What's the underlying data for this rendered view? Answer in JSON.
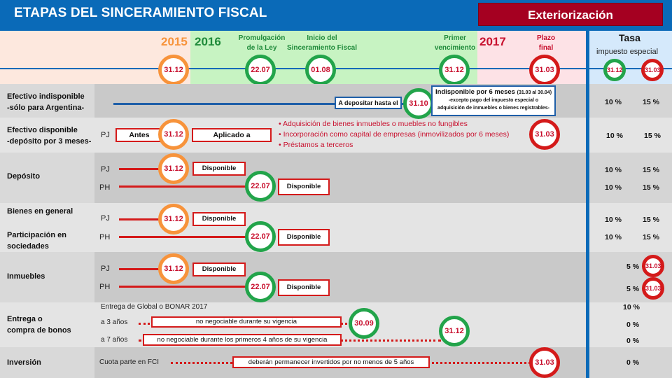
{
  "header": {
    "title": "ETAPAS DEL SINCERAMIENTO FISCAL",
    "badge": "Exteriorización"
  },
  "years": {
    "y2015": "2015",
    "y2016": "2016",
    "y2017": "2017"
  },
  "milestones": {
    "promulgacion": [
      "Promulgación",
      "de la Ley"
    ],
    "inicio": [
      "Inicio del",
      "Sinceramiento Fiscal"
    ],
    "primer": [
      "Primer",
      "vencimiento"
    ],
    "plazo": [
      "Plazo",
      "final"
    ]
  },
  "tasa": {
    "title": "Tasa",
    "subtitle": "impuesto especial",
    "d1": "31.12",
    "d2": "31.03"
  },
  "timeline": {
    "d1": "31.12",
    "d2": "22.07",
    "d3": "01.08",
    "d4": "31.12",
    "d5": "31.03"
  },
  "rows": {
    "efectivo_indisp": {
      "label": [
        "Efectivo indisponible",
        "-sólo para Argentina-"
      ],
      "deposit": "A depositar hasta el",
      "date": "31.10",
      "note_title": "Indisponible por 6 meses",
      "note_range": "(31.03 al 30.04)",
      "note_sub1": "-excepto pago del impuesto especial o",
      "note_sub2": "adquisición de inmuebles o bienes registrables-",
      "rate1": "10 %",
      "rate2": "15 %"
    },
    "efectivo_disp": {
      "label": [
        "Efectivo disponible",
        "-depósito por 3 meses-"
      ],
      "pj": "PJ",
      "antes": "Antes",
      "date": "31.12",
      "aplicado": "Aplicado a",
      "bullets": [
        "Adquisición de bienes inmuebles o muebles no fungibles",
        "Incorporación como capital de empresas (inmovilizados por 6 meses)",
        "Préstamos a terceros"
      ],
      "end_date": "31.03",
      "rate1": "10 %",
      "rate2": "15 %"
    },
    "deposito": {
      "label": "Depósito",
      "pj": "PJ",
      "ph": "PH",
      "pj_date": "31.12",
      "ph_date": "22.07",
      "pj_box": "Disponible",
      "ph_box": "Disponible",
      "pj_r1": "10 %",
      "pj_r2": "15 %",
      "ph_r1": "10 %",
      "ph_r2": "15 %"
    },
    "bienes": {
      "label1": "Bienes en general",
      "label2": [
        "Participación en",
        "sociedades"
      ],
      "pj": "PJ",
      "ph": "PH",
      "pj_date": "31.12",
      "ph_date": "22.07",
      "pj_box": "Disponible",
      "ph_box": "Disponible",
      "pj_r1": "10 %",
      "pj_r2": "15 %",
      "ph_r1": "10 %",
      "ph_r2": "15 %"
    },
    "inmuebles": {
      "label": "Inmuebles",
      "pj": "PJ",
      "ph": "PH",
      "pj_date": "31.12",
      "ph_date": "22.07",
      "pj_box": "Disponible",
      "ph_box": "Disponible",
      "pj_rate": "5 %",
      "ph_rate": "5 %",
      "circle": "31.03"
    },
    "bonos": {
      "label": [
        "Entrega o",
        "compra de bonos"
      ],
      "intro": "Entrega de Global o BONAR 2017",
      "intro_rate": "10 %",
      "a3": "a 3 años",
      "a3_box": "no negociable durante su vigencia",
      "a3_date": "30.09",
      "a3_rate": "0 %",
      "a7": "a 7 años",
      "a7_box": "no negociable durante los primeros 4 años de su vigencia",
      "a7_date": "31.12",
      "a7_rate": "0 %"
    },
    "inversion": {
      "label": "Inversión",
      "text": "Cuota parte en FCI",
      "box": "deberán permanecer invertidos por no menos de 5 años",
      "date": "31.03",
      "rate": "0 %"
    }
  },
  "colors": {
    "blue": "#0a6ab8",
    "darkred": "#a50021",
    "orange": "#f7933b",
    "green": "#22a44a",
    "red": "#d41a1a"
  }
}
